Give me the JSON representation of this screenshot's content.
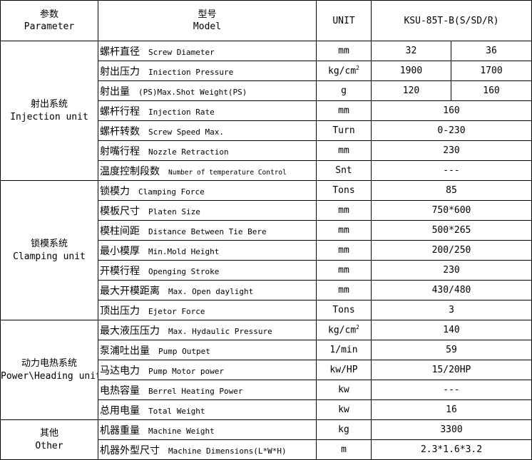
{
  "header": {
    "parameter_zh": "参数",
    "parameter_en": "Parameter",
    "model_zh": "型号",
    "model_en": "Model",
    "unit": "UNIT",
    "model_name": "KSU-85T-B(S/SD/R)"
  },
  "groups": [
    {
      "zh": "射出系统",
      "en": "Injection unit",
      "rows": [
        {
          "zh": "螺杆直径",
          "en": "Screw Diameter",
          "unit": "mm",
          "values": [
            "32",
            "36"
          ]
        },
        {
          "zh": "射出压力",
          "en": "Iniection Pressure",
          "unit": "kg/cm",
          "unit_sup": "2",
          "values": [
            "1900",
            "1700"
          ]
        },
        {
          "zh": "射出量",
          "en": "(PS)Max.Shot Weight(PS)",
          "unit": "g",
          "values": [
            "120",
            "160"
          ]
        },
        {
          "zh": "螺杆行程",
          "en": "Injection  Rate",
          "unit": "mm",
          "values": [
            "160"
          ]
        },
        {
          "zh": "螺杆转数",
          "en": "Screw Speed Max.",
          "unit": "Turn",
          "values": [
            "0-230"
          ]
        },
        {
          "zh": "射嘴行程",
          "en": "Nozzle  Retraction",
          "unit": "mm",
          "values": [
            "230"
          ]
        },
        {
          "zh": "温度控制段数",
          "en": "Number of temperature Control",
          "unit": "Snt",
          "values": [
            "---"
          ]
        }
      ]
    },
    {
      "zh": "锁模系统",
      "en": "Clamping unit",
      "rows": [
        {
          "zh": "锁模力",
          "en": "Clamping Force",
          "unit": "Tons",
          "values": [
            "85"
          ]
        },
        {
          "zh": "模板尺寸",
          "en": "Platen Size",
          "unit": "mm",
          "values": [
            "750*600"
          ]
        },
        {
          "zh": "模柱间距",
          "en": "Distance Between Tie Bere",
          "unit": "mm",
          "values": [
            "500*265"
          ]
        },
        {
          "zh": "最小模厚",
          "en": "Min.Mold Height",
          "unit": "mm",
          "values": [
            "200/250"
          ]
        },
        {
          "zh": "开模行程",
          "en": "Openging Stroke",
          "unit": "mm",
          "values": [
            "230"
          ]
        },
        {
          "zh": "最大开模距离",
          "en": "Max. Open daylight",
          "unit": "mm",
          "values": [
            "430/480"
          ]
        },
        {
          "zh": "顶出压力",
          "en": "Ejetor Force",
          "unit": "Tons",
          "values": [
            "3"
          ]
        }
      ]
    },
    {
      "zh": "动力电热系统",
      "en": "Power\\Heading unit",
      "rows": [
        {
          "zh": "最大液压压力",
          "en": "Max. Hydaulic Pressure",
          "unit": "kg/cm",
          "unit_sup": "2",
          "values": [
            "140"
          ]
        },
        {
          "zh": "泵浦吐出量",
          "en": "Pump Outpet",
          "unit": "1/min",
          "values": [
            "59"
          ]
        },
        {
          "zh": "马达电力",
          "en": "Pump Motor power",
          "unit": "kw/HP",
          "values": [
            "15/20HP"
          ]
        },
        {
          "zh": "电热容量",
          "en": "Berrel Heating Power",
          "unit": "kw",
          "values": [
            "---"
          ]
        },
        {
          "zh": "总用电量",
          "en": "Total Weight",
          "unit": "kw",
          "values": [
            "16"
          ]
        }
      ]
    },
    {
      "zh": "其他",
      "en": "Other",
      "rows": [
        {
          "zh": "机器重量",
          "en": "Machine Weight",
          "unit": "kg",
          "values": [
            "3300"
          ]
        },
        {
          "zh": "机器外型尺寸",
          "en": "Machine Dimensions(L*W*H)",
          "unit": "m",
          "values": [
            "2.3*1.6*3.2"
          ]
        }
      ]
    }
  ]
}
